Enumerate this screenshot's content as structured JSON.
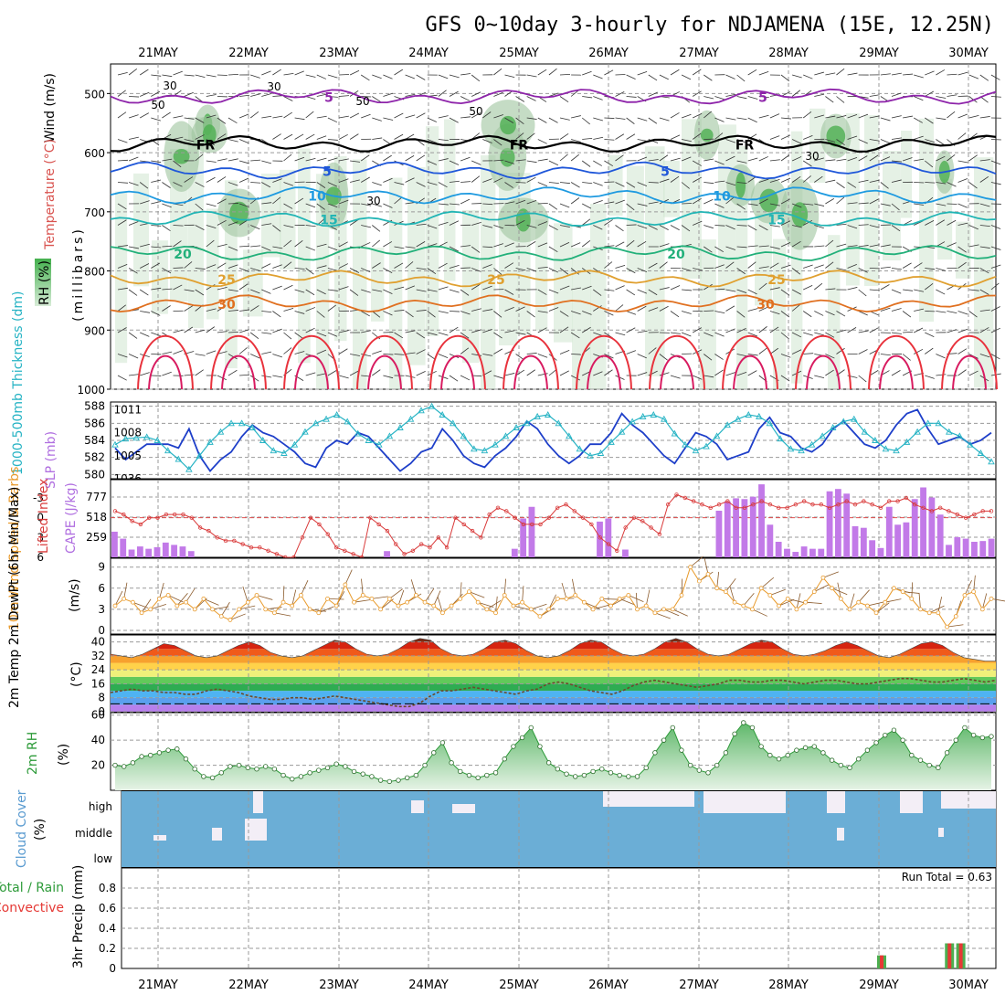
{
  "title": "GFS 0~10day 3-hourly for NDJAMENA (15E, 12.25N)",
  "dates": [
    "21MAY",
    "22MAY",
    "23MAY",
    "24MAY",
    "25MAY",
    "26MAY",
    "27MAY",
    "28MAY",
    "29MAY",
    "30MAY"
  ],
  "colors": {
    "rh_green": "#4caf50",
    "temp_cold": "#7b1fa2",
    "temp_warm": "#e53935",
    "slp": "#1e3fc9",
    "thickness": "#26b3c4",
    "cape": "#c27ae8",
    "lifted": "#d93a3a",
    "wind10m": "#e89a2b",
    "rh2m": "#2e9b3a",
    "cloud": "#6baed6",
    "cloud_clear": "#f3eef6",
    "precip_total": "#4caf50",
    "precip_conv": "#e53935"
  },
  "chart_data": [
    {
      "type": "heatmap",
      "panel": "upper-air",
      "ylabel_parts": [
        "Wind (m/s)",
        "Temperature (°C)",
        "RH (%)"
      ],
      "ylabel_units": "(millibars)",
      "y_ticks": [
        500,
        600,
        700,
        800,
        900,
        1000
      ],
      "ylim": [
        450,
        1000
      ],
      "isotherms": [
        {
          "label": "5",
          "level": 505,
          "y_offset": 0
        },
        {
          "label": "FR",
          "level": 585
        },
        {
          "label": "5",
          "level": 630
        },
        {
          "label": "10",
          "level": 672
        },
        {
          "label": "15",
          "level": 712
        },
        {
          "label": "20",
          "level": 770
        },
        {
          "label": "25",
          "level": 813
        },
        {
          "label": "30",
          "level": 855
        }
      ],
      "rh_contour_labels": [
        "30",
        "50",
        "50",
        "30",
        "50",
        "30",
        "30"
      ]
    },
    {
      "type": "line",
      "panel": "thickness-slp",
      "ylabel": "1000-500mb Thickness (dm)",
      "ylabel2": "SLP (mb)",
      "left_ticks": [
        580,
        582,
        584,
        586,
        588
      ],
      "right_ticks": [
        1005,
        1008,
        1011
      ],
      "series": [
        {
          "name": "SLP",
          "values": [
            1006.0,
            1004.5,
            1005.5,
            1006.5,
            1006.5,
            1006.5,
            1006.0,
            1008.5,
            1005.0,
            1003.0,
            1004.5,
            1005.5,
            1007.5,
            1009.0,
            1008.0,
            1007.5,
            1006.5,
            1005.5,
            1004.0,
            1003.5,
            1006.0,
            1007.0,
            1006.5,
            1008.0,
            1007.5,
            1006.0,
            1004.5,
            1003.0,
            1004.0,
            1005.5,
            1006.0,
            1008.5,
            1007.0,
            1005.0,
            1004.0,
            1003.5,
            1005.0,
            1006.0,
            1007.5,
            1009.5,
            1008.5,
            1006.5,
            1005.0,
            1004.0,
            1005.0,
            1006.5,
            1006.5,
            1008.0,
            1010.5,
            1009.0,
            1008.0,
            1006.5,
            1005.0,
            1004.0,
            1006.0,
            1008.0,
            1007.5,
            1006.5,
            1004.5,
            1005.0,
            1005.5,
            1008.5,
            1010.0,
            1008.0,
            1007.5,
            1006.0,
            1005.5,
            1006.5,
            1008.5,
            1009.5,
            1008.0,
            1006.5,
            1006.0,
            1007.0,
            1009.0,
            1010.5,
            1011.0,
            1008.5,
            1006.5,
            1007.0,
            1007.5,
            1006.5,
            1007.0,
            1008.0
          ]
        },
        {
          "name": "Thickness",
          "values": [
            583.5,
            584.2,
            584.3,
            584.4,
            584.0,
            582.8,
            581.8,
            580.6,
            582.2,
            583.8,
            585.0,
            586.0,
            586.0,
            585.5,
            584.0,
            582.8,
            582.5,
            583.5,
            585.0,
            586.0,
            586.5,
            587.0,
            586.2,
            584.8,
            584.0,
            583.5,
            584.5,
            585.5,
            586.5,
            587.5,
            588.0,
            587.0,
            586.0,
            584.5,
            583.0,
            582.8,
            583.5,
            584.5,
            585.5,
            586.0,
            586.8,
            587.0,
            586.0,
            584.5,
            583.0,
            582.2,
            582.5,
            583.8,
            585.0,
            586.2,
            586.8,
            587.0,
            586.5,
            584.8,
            583.5,
            582.8,
            583.3,
            584.5,
            585.8,
            586.5,
            587.0,
            586.8,
            586.0,
            584.2,
            583.0,
            582.8,
            583.5,
            584.5,
            585.5,
            586.2,
            586.5,
            585.0,
            584.0,
            583.0,
            582.8,
            583.8,
            585.0,
            586.0,
            586.0,
            585.0,
            584.5,
            583.5,
            582.5,
            581.5
          ]
        }
      ]
    },
    {
      "type": "bar",
      "panel": "cape-li",
      "ylabel": "Lifted Index",
      "ylabel2": "CAPE (J/kg)",
      "left_ticks": [
        -3,
        0,
        3,
        6
      ],
      "right_ticks": [
        259,
        518,
        777
      ],
      "series": [
        {
          "name": "CAPE",
          "values": [
            330,
            240,
            100,
            140,
            110,
            130,
            190,
            160,
            140,
            80,
            0,
            0,
            0,
            0,
            0,
            0,
            0,
            0,
            0,
            0,
            0,
            0,
            0,
            0,
            0,
            0,
            0,
            0,
            0,
            0,
            0,
            0,
            80,
            0,
            0,
            0,
            0,
            0,
            0,
            0,
            0,
            0,
            0,
            0,
            0,
            0,
            0,
            110,
            500,
            650,
            0,
            0,
            0,
            0,
            0,
            0,
            0,
            460,
            500,
            0,
            100,
            0,
            0,
            0,
            0,
            0,
            0,
            0,
            0,
            0,
            0,
            600,
            720,
            760,
            750,
            780,
            940,
            420,
            200,
            110,
            70,
            140,
            110,
            110,
            850,
            880,
            820,
            400,
            380,
            220,
            120,
            650,
            420,
            450,
            750,
            900,
            770,
            550,
            160,
            260,
            240,
            200,
            210,
            240
          ]
        },
        {
          "name": "Lifted Index",
          "values": [
            -1.0,
            -0.5,
            0.5,
            1.0,
            0.0,
            0.0,
            -0.5,
            -0.5,
            -0.5,
            0.0,
            1.5,
            2.0,
            3.0,
            3.5,
            3.5,
            4.0,
            4.5,
            4.5,
            5.0,
            5.5,
            6.0,
            6.0,
            3.0,
            0.0,
            1.0,
            2.5,
            4.5,
            5.0,
            5.5,
            6.0,
            0.0,
            1.0,
            2.0,
            4.0,
            5.5,
            5.0,
            4.0,
            4.5,
            3.0,
            4.5,
            0.0,
            1.0,
            2.0,
            3.0,
            -0.5,
            -1.5,
            -1.0,
            0.0,
            1.0,
            1.0,
            1.0,
            0.0,
            -1.5,
            -2.0,
            -1.0,
            0.0,
            1.0,
            3.0,
            4.0,
            5.0,
            1.5,
            0.0,
            0.5,
            1.5,
            2.5,
            -2.0,
            -3.5,
            -3.0,
            -2.5,
            -2.0,
            -1.5,
            -2.0,
            -2.5,
            -1.5,
            -1.5,
            -2.0,
            -2.5,
            -2.0,
            -1.5,
            -1.5,
            -2.0,
            -2.5,
            -2.0,
            -2.0,
            -1.5,
            -2.0,
            -2.5,
            -2.0,
            -2.5,
            -2.0,
            -1.5,
            -2.5,
            -2.5,
            -3.0,
            -2.0,
            -1.5,
            -1.0,
            -1.5,
            -1.0,
            -0.5,
            0.0,
            -0.5,
            -1.0,
            -1.0
          ]
        }
      ]
    },
    {
      "type": "line",
      "panel": "wind10m",
      "ylabel": "10m Wind Speed & Barbs",
      "ylabel_units": "(m/s)",
      "y_ticks": [
        0,
        3,
        6,
        9
      ],
      "ylim": [
        0,
        10
      ],
      "series": [
        {
          "name": "10m Wind Speed",
          "values": [
            3.5,
            4.5,
            4.0,
            2.5,
            3.0,
            4.5,
            5.0,
            3.5,
            4.0,
            3.0,
            4.5,
            3.0,
            2.0,
            1.5,
            3.0,
            4.0,
            5.0,
            3.0,
            2.5,
            4.0,
            3.5,
            5.0,
            3.0,
            2.5,
            4.5,
            3.5,
            6.5,
            4.0,
            5.0,
            4.5,
            3.0,
            4.5,
            3.5,
            4.0,
            5.0,
            4.0,
            3.5,
            2.5,
            3.5,
            4.5,
            5.5,
            4.0,
            3.0,
            2.5,
            5.0,
            3.5,
            4.0,
            3.0,
            2.0,
            3.0,
            4.5,
            4.5,
            5.0,
            4.0,
            3.0,
            4.5,
            3.5,
            4.5,
            5.0,
            3.0,
            3.5,
            2.5,
            3.0,
            3.0,
            5.0,
            9.0,
            7.0,
            8.0,
            6.0,
            5.5,
            4.0,
            3.5,
            3.0,
            6.0,
            5.0,
            3.5,
            4.5,
            3.0,
            4.0,
            5.5,
            7.5,
            6.0,
            4.5,
            3.0,
            4.0,
            3.5,
            2.5,
            4.0,
            6.0,
            5.5,
            4.5,
            3.0,
            2.5,
            2.5,
            0.5,
            2.0,
            5.0,
            5.5,
            3.0,
            4.5
          ]
        }
      ]
    },
    {
      "type": "area",
      "panel": "temp-dewpt",
      "ylabel": "2m Temp 2m DewPt (6hr Min/Max)",
      "ylabel_units": "(°C)",
      "y_ticks": [
        0,
        8,
        16,
        24,
        32,
        40
      ],
      "ylim": [
        0,
        44
      ],
      "series": [
        {
          "name": "2m Temp",
          "values": [
            33,
            32,
            31,
            33,
            36,
            39,
            38,
            35,
            32,
            31,
            32,
            35,
            38,
            40,
            38,
            34,
            32,
            31,
            32,
            35,
            38,
            41,
            40,
            36,
            33,
            32,
            33,
            36,
            40,
            42,
            41,
            36,
            33,
            32,
            33,
            36,
            40,
            41,
            39,
            35,
            32,
            31,
            32,
            35,
            39,
            41,
            40,
            36,
            33,
            32,
            33,
            36,
            40,
            42,
            40,
            36,
            33,
            32,
            33,
            36,
            39,
            41,
            40,
            36,
            33,
            32,
            33,
            35,
            38,
            40,
            38,
            35,
            32,
            31,
            33,
            36,
            39,
            40,
            38,
            34,
            31,
            30,
            29,
            29
          ]
        },
        {
          "name": "2m DewPt",
          "values": [
            11,
            12,
            13,
            12,
            12,
            11,
            11,
            10,
            10,
            12,
            13,
            12,
            11,
            9,
            8,
            7,
            7,
            8,
            8,
            7,
            8,
            9,
            8,
            7,
            6,
            5,
            4,
            3,
            3,
            5,
            9,
            12,
            12,
            13,
            14,
            13,
            12,
            11,
            10,
            12,
            13,
            16,
            17,
            16,
            14,
            12,
            11,
            10,
            12,
            15,
            17,
            18,
            17,
            16,
            15,
            14,
            15,
            16,
            18,
            18,
            17,
            17,
            18,
            18,
            17,
            16,
            17,
            18,
            18,
            17,
            16,
            16,
            17,
            18,
            19,
            19,
            18,
            17,
            17,
            18,
            19,
            18,
            17,
            18
          ]
        }
      ]
    },
    {
      "type": "area",
      "panel": "rh2m",
      "ylabel": "2m RH",
      "ylabel_units": "(%)",
      "y_ticks": [
        20,
        40,
        60
      ],
      "ylim": [
        0,
        60
      ],
      "series": [
        {
          "name": "2m RH",
          "values": [
            20,
            19,
            22,
            27,
            28,
            30,
            32,
            33,
            25,
            17,
            11,
            10,
            14,
            19,
            20,
            18,
            17,
            19,
            17,
            12,
            9,
            11,
            14,
            16,
            18,
            21,
            19,
            15,
            13,
            11,
            8,
            7,
            8,
            10,
            12,
            20,
            30,
            38,
            22,
            15,
            12,
            10,
            12,
            14,
            25,
            35,
            42,
            50,
            35,
            22,
            17,
            13,
            11,
            12,
            15,
            17,
            14,
            12,
            11,
            11,
            18,
            30,
            40,
            50,
            32,
            20,
            16,
            14,
            20,
            30,
            45,
            54,
            50,
            35,
            28,
            25,
            28,
            32,
            34,
            35,
            30,
            24,
            20,
            18,
            25,
            32,
            38,
            44,
            48,
            40,
            28,
            24,
            20,
            18,
            30,
            40,
            50,
            44,
            42,
            43
          ]
        }
      ]
    },
    {
      "type": "heatmap",
      "panel": "cloud",
      "ylabel": "Cloud Cover",
      "ylabel_units": "(%)",
      "layers": [
        "high",
        "middle",
        "low"
      ]
    },
    {
      "type": "bar",
      "panel": "precip",
      "ylabel": "3hr Precip (mm)",
      "legend_parts": [
        "Total / Rain",
        "Convective"
      ],
      "run_total": "Run Total = 0.63",
      "y_ticks": [
        0,
        0.2,
        0.4,
        0.6,
        0.8
      ],
      "ylim": [
        0,
        1.0
      ],
      "bars": [
        {
          "x": 8.0,
          "total": 0.13,
          "convective": 0.13
        },
        {
          "x": 8.75,
          "total": 0.25,
          "convective": 0.25
        },
        {
          "x": 8.875,
          "total": 0.25,
          "convective": 0.25
        }
      ]
    }
  ]
}
